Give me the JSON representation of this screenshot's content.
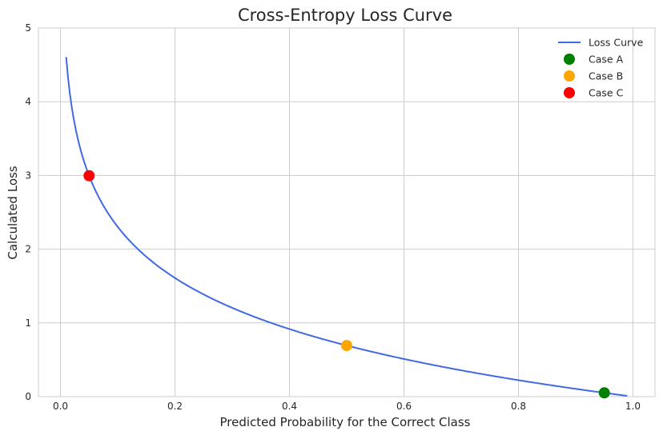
{
  "chart_data": {
    "type": "line",
    "title": "Cross-Entropy Loss Curve",
    "xlabel": "Predicted Probability for the Correct Class",
    "ylabel": "Calculated Loss",
    "xlim": [
      -0.0385,
      1.0385
    ],
    "ylim": [
      0,
      5
    ],
    "xticks": [
      0.0,
      0.2,
      0.4,
      0.6,
      0.8,
      1.0
    ],
    "xtick_labels": [
      "0.0",
      "0.2",
      "0.4",
      "0.6",
      "0.8",
      "1.0"
    ],
    "yticks": [
      0,
      1,
      2,
      3,
      4,
      5
    ],
    "ytick_labels": [
      "0",
      "1",
      "2",
      "3",
      "4",
      "5"
    ],
    "grid": true,
    "legend_position": "top-right",
    "series": [
      {
        "name": "Loss Curve",
        "kind": "line",
        "function": "-ln(p)",
        "x_range": [
          0.01,
          0.99
        ],
        "color": "#4169e1"
      }
    ],
    "points": [
      {
        "name": "Case A",
        "x": 0.95,
        "y": 0.051,
        "color": "#008000"
      },
      {
        "name": "Case B",
        "x": 0.5,
        "y": 0.693,
        "color": "#ffa500"
      },
      {
        "name": "Case C",
        "x": 0.05,
        "y": 2.996,
        "color": "#ff0000"
      }
    ]
  }
}
